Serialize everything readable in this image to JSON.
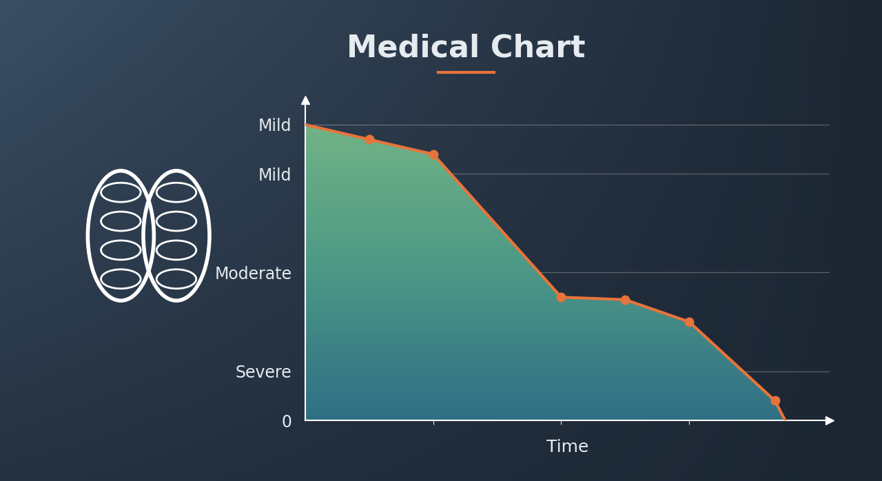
{
  "chart_data": {
    "type": "line",
    "title": "Medical Chart",
    "x_label": "Time",
    "x": [
      0,
      0.5,
      1.0,
      2.0,
      2.5,
      3.0,
      3.67,
      3.75
    ],
    "values": [
      6.0,
      5.7,
      5.4,
      2.5,
      2.45,
      2.0,
      0.4,
      0
    ],
    "color": "#e8743b",
    "marker": "o",
    "xlim": [
      0,
      4.1
    ],
    "xticks": [
      1,
      2,
      3
    ],
    "ylim": [
      0,
      6.5
    ],
    "yticks": [
      {
        "value": 0,
        "label": "0"
      },
      {
        "value": 1,
        "label": "Severe"
      },
      {
        "value": 3,
        "label": "Moderate"
      },
      {
        "value": 5,
        "label": "Mild"
      },
      {
        "value": 6,
        "label": "Mild"
      }
    ],
    "grid": true,
    "tick_labels": "y"
  }
}
